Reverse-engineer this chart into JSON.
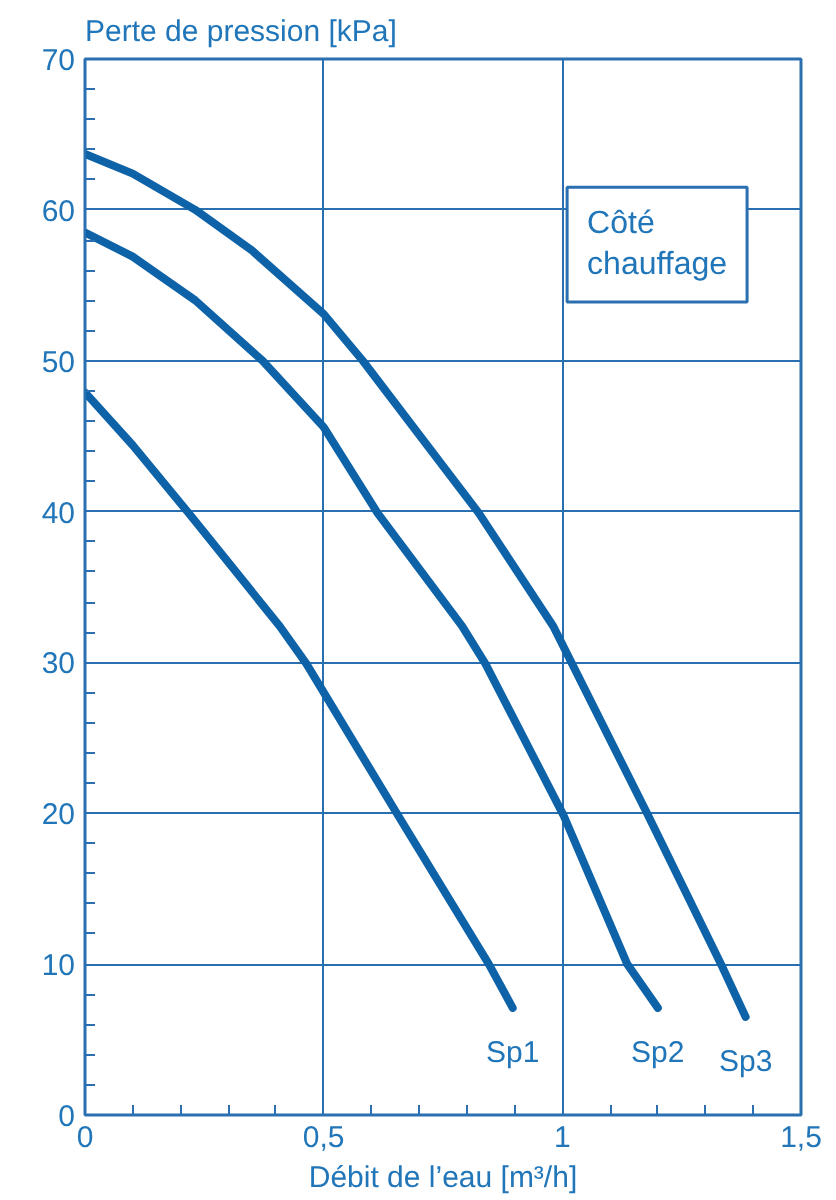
{
  "chart_data": {
    "type": "line",
    "ylabel": "Perte de pression [kPa]",
    "xlabel": "Débit de l’eau [m³/h]",
    "xlim": [
      0,
      1.5
    ],
    "ylim": [
      0,
      70
    ],
    "xticks": [
      0,
      {
        "value": 0.5,
        "label": "0,5"
      },
      1,
      {
        "value": 1.5,
        "label": "1,5"
      }
    ],
    "yticks": [
      0,
      10,
      20,
      30,
      40,
      50,
      60,
      70
    ],
    "grid": true,
    "legend": false,
    "marker": "none",
    "line_style": "solid",
    "annotations": [
      "Côté\nchauffage"
    ],
    "series": [
      {
        "name": "Sp1",
        "color": "#0e63a8",
        "x": [
          0,
          0.1,
          0.217,
          0.408,
          0.464,
          0.655,
          0.846,
          0.896
        ],
        "values": [
          47.9,
          44.4,
          39.9,
          32.4,
          29.9,
          19.9,
          10,
          7.1
        ]
      },
      {
        "name": "Sp2",
        "color": "#0e63a8",
        "x": [
          0,
          0.1,
          0.231,
          0.372,
          0.5,
          0.613,
          0.79,
          0.839,
          1.002,
          1.136,
          1.2
        ],
        "values": [
          58.5,
          56.9,
          54,
          50,
          45.6,
          39.9,
          32.4,
          29.9,
          19.9,
          10,
          7.1
        ]
      },
      {
        "name": "Sp3",
        "color": "#0e63a8",
        "x": [
          0,
          0.1,
          0.231,
          0.35,
          0.5,
          0.582,
          0.825,
          0.981,
          1.179,
          1.334,
          1.384
        ],
        "values": [
          63.7,
          62.4,
          60,
          57.3,
          53.1,
          50,
          39.9,
          32.4,
          19.9,
          9.9,
          6.5
        ]
      }
    ]
  }
}
